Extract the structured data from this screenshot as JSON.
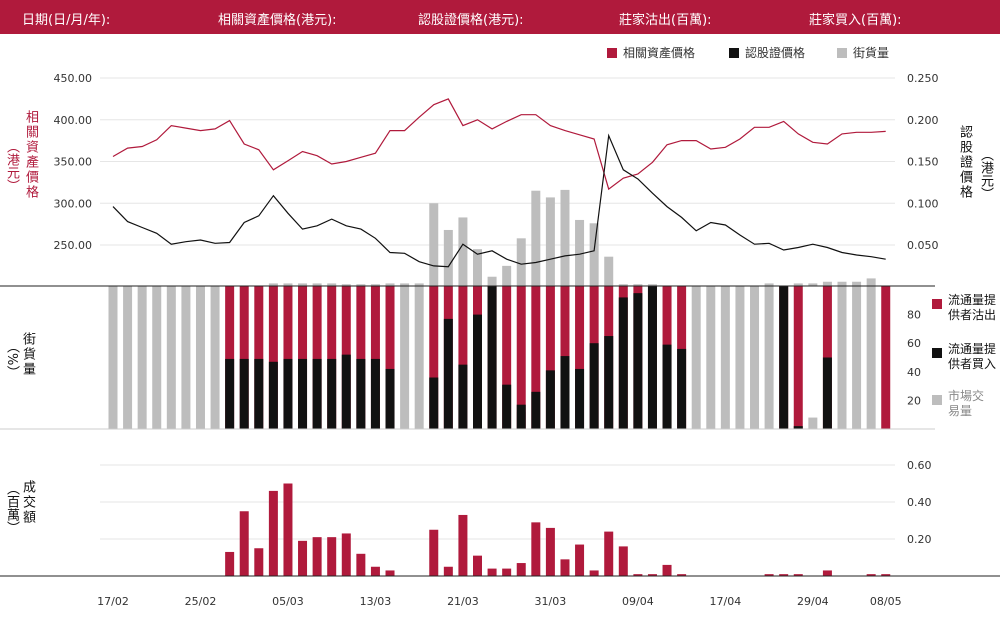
{
  "header": {
    "date": "日期(日/月/年):",
    "asset": "相關資產價格(港元):",
    "warrant": "認股證價格(港元):",
    "mm_out": "莊家沽出(百萬):",
    "mm_in": "莊家買入(百萬):"
  },
  "legend": {
    "asset": "相關資產價格",
    "warrant": "認股證價格",
    "street": "街貨量"
  },
  "colors": {
    "red": "#b01a3c",
    "black": "#111111",
    "gray": "#bdbdbd"
  },
  "axis_labels": {
    "left_top": "相關資產價格",
    "left_top_unit": "（港元）",
    "right_top": "認股證價格",
    "right_top_unit": "（港元）",
    "left_mid": "街貨量",
    "left_mid_unit": "（%）",
    "left_bot": "成交額",
    "left_bot_unit": "（百萬）"
  },
  "mid_legend": {
    "sell": "流通量提供者沽出",
    "buy": "流通量提供者買入",
    "market": "市場交易量"
  },
  "chart_data": [
    {
      "type": "line",
      "name": "price",
      "left_ticks": [
        "450.00",
        "400.00",
        "350.00",
        "300.00",
        "250.00"
      ],
      "right_ticks": [
        "0.250",
        "0.200",
        "0.150",
        "0.100",
        "0.050"
      ],
      "left_ylim": [
        200,
        450
      ],
      "right_ylim": [
        0,
        0.25
      ],
      "x_ticks": [
        "17/02",
        "25/02",
        "05/03",
        "13/03",
        "21/03",
        "31/03",
        "09/04",
        "17/04",
        "29/04",
        "08/05"
      ],
      "series": [
        {
          "name": "相關資產價格",
          "axis": "left",
          "values": [
            356,
            366,
            368,
            376,
            393,
            390,
            387,
            389,
            399,
            371,
            364,
            340,
            351,
            362,
            357,
            347,
            350,
            355,
            360,
            387,
            387,
            403,
            418,
            425,
            393,
            400,
            389,
            398,
            406,
            406,
            393,
            387,
            382,
            377,
            317,
            330,
            335,
            349,
            370,
            375,
            375,
            365,
            367,
            377,
            391,
            391,
            398,
            383,
            373,
            371,
            383,
            385,
            385,
            386
          ]
        },
        {
          "name": "認股證價格",
          "axis": "right",
          "values": [
            0.096,
            0.078,
            0.071,
            0.064,
            0.051,
            0.054,
            0.056,
            0.052,
            0.053,
            0.077,
            0.085,
            0.109,
            0.088,
            0.069,
            0.073,
            0.081,
            0.073,
            0.069,
            0.058,
            0.041,
            0.04,
            0.03,
            0.025,
            0.024,
            0.051,
            0.039,
            0.043,
            0.033,
            0.027,
            0.029,
            0.033,
            0.037,
            0.039,
            0.043,
            0.181,
            0.14,
            0.129,
            0.112,
            0.096,
            0.083,
            0.067,
            0.077,
            0.074,
            0.062,
            0.051,
            0.052,
            0.044,
            0.047,
            0.051,
            0.047,
            0.041,
            0.038,
            0.036,
            0.033
          ]
        },
        {
          "name": "街貨量",
          "axis": "left",
          "type": "bar",
          "values": [
            0,
            0,
            0,
            0,
            0,
            0,
            0,
            0,
            0,
            0,
            0,
            204,
            204,
            204,
            204,
            204,
            203,
            203,
            203,
            204,
            204,
            204,
            300,
            268,
            283,
            245,
            212,
            225,
            258,
            315,
            307,
            316,
            280,
            276,
            236,
            203,
            203,
            203,
            0,
            0,
            0,
            0,
            0,
            0,
            0,
            204,
            0,
            204,
            204,
            206,
            206,
            206,
            210,
            0
          ]
        }
      ]
    },
    {
      "type": "bar",
      "name": "street_pct",
      "yticks": [
        "80",
        "60",
        "40",
        "20"
      ],
      "ylim": [
        0,
        100
      ],
      "series": [
        {
          "name": "流通量提供者沽出",
          "values": [
            0,
            0,
            0,
            0,
            0,
            0,
            0,
            0,
            100,
            100,
            100,
            100,
            100,
            100,
            100,
            100,
            100,
            100,
            100,
            100,
            0,
            0,
            100,
            100,
            100,
            100,
            100,
            100,
            100,
            100,
            100,
            100,
            100,
            100,
            100,
            100,
            100,
            100,
            100,
            100,
            0,
            0,
            0,
            0,
            0,
            0,
            100,
            100,
            0,
            100,
            0,
            0,
            0,
            100
          ]
        },
        {
          "name": "流通量提供者買入",
          "values": [
            0,
            0,
            0,
            0,
            0,
            0,
            0,
            0,
            49,
            49,
            49,
            47,
            49,
            49,
            49,
            49,
            52,
            49,
            49,
            42,
            0,
            0,
            36,
            77,
            45,
            80,
            100,
            31,
            17,
            26,
            41,
            51,
            42,
            60,
            65,
            92,
            95,
            100,
            59,
            56,
            0,
            0,
            0,
            0,
            0,
            0,
            100,
            2,
            0,
            50,
            0,
            0,
            0,
            0
          ]
        },
        {
          "name": "市場交易量",
          "values": [
            100,
            100,
            100,
            100,
            100,
            100,
            100,
            100,
            0,
            0,
            0,
            0,
            0,
            0,
            0,
            0,
            0,
            0,
            0,
            0,
            100,
            100,
            0,
            0,
            0,
            0,
            0,
            0,
            12,
            0,
            0,
            0,
            0,
            0,
            0,
            0,
            0,
            0,
            20,
            0,
            100,
            100,
            100,
            100,
            100,
            100,
            0,
            0,
            8,
            0,
            100,
            100,
            100,
            0
          ]
        }
      ]
    },
    {
      "type": "bar",
      "name": "turnover",
      "yticks": [
        "0.60",
        "0.40",
        "0.20"
      ],
      "ylim": [
        0,
        0.7
      ],
      "values": [
        0,
        0,
        0,
        0,
        0,
        0,
        0,
        0,
        0.13,
        0.35,
        0.15,
        0.46,
        0.5,
        0.19,
        0.21,
        0.21,
        0.23,
        0.12,
        0.05,
        0.03,
        0,
        0,
        0.25,
        0.05,
        0.33,
        0.11,
        0.04,
        0.04,
        0.07,
        0.29,
        0.26,
        0.09,
        0.17,
        0.03,
        0.24,
        0.16,
        0.01,
        0.01,
        0.06,
        0.01,
        0,
        0,
        0,
        0,
        0,
        0.01,
        0.01,
        0.01,
        0,
        0.03,
        0,
        0,
        0.01,
        0.01
      ]
    }
  ]
}
